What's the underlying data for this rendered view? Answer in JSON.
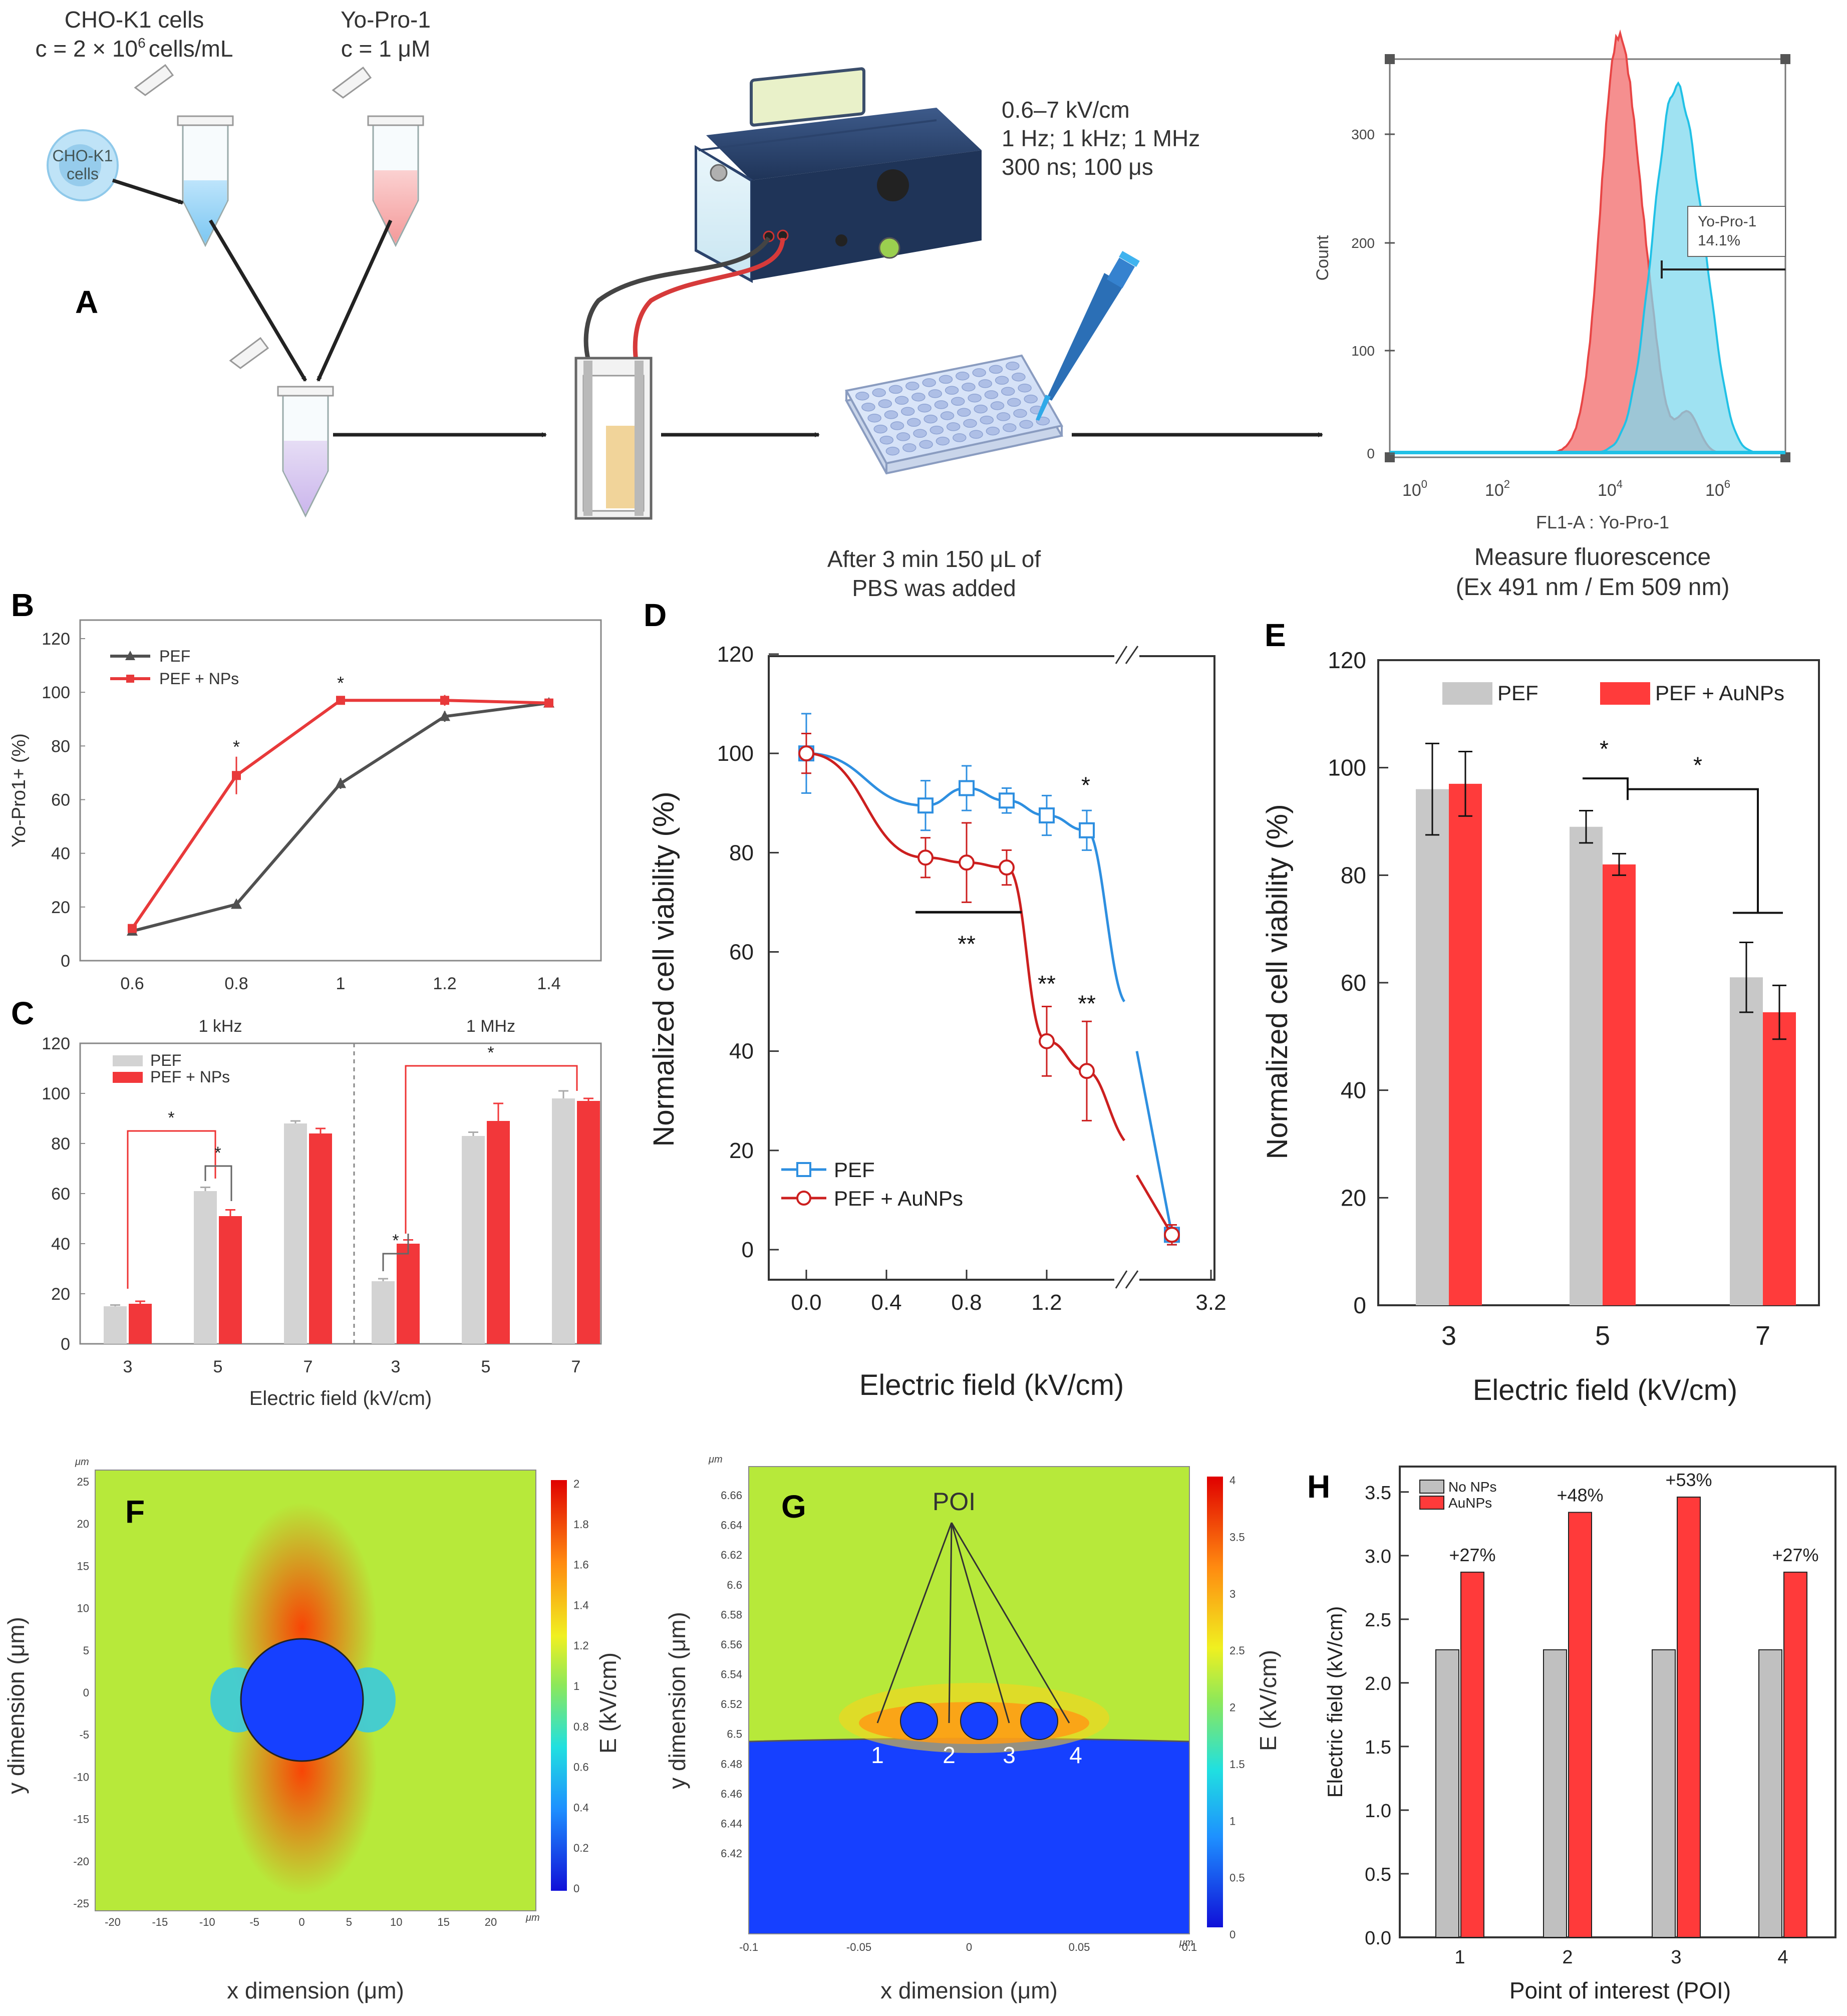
{
  "panel_letters": {
    "A": "A",
    "B": "B",
    "C": "C",
    "D": "D",
    "E": "E",
    "F": "F",
    "G": "G",
    "H": "H"
  },
  "panelA": {
    "cells_label_1": "CHO-K1 cells",
    "cells_label_2": "c = 2 × 10",
    "cells_label_sup": "6",
    "cells_label_3": "cells/mL",
    "dye_label_1": "Yo-Pro-1",
    "dye_label_2": "c = 1 μM",
    "circle_label_1": "CHO-K1",
    "circle_label_2": "cells",
    "pulse_params_1": "0.6–7 kV/cm",
    "pulse_params_2": "1 Hz; 1 kHz; 1 MHz",
    "pulse_params_3": "300 ns; 100 μs",
    "pbs_note_1": "After 3 min 150 μL of",
    "pbs_note_2": "PBS was added",
    "measure_1": "Measure fluorescence",
    "measure_2": "(Ex 491 nm / Em 509 nm)"
  },
  "chart_data": [
    {
      "id": "A-histogram",
      "type": "area",
      "xlabel": "FL1-A : Yo-Pro-1",
      "ylabel": "Count",
      "yticks": [
        "0",
        "100",
        "200",
        "300"
      ],
      "xticks": [
        "10",
        "10",
        "10",
        "10"
      ],
      "xtick_exponents": [
        "0",
        "2",
        "4",
        "6"
      ],
      "gate_label": "Yo-Pro-1",
      "gate_value": "14.1%",
      "colors": {
        "control": "#f26d6d",
        "treated": "#35c8e6"
      }
    },
    {
      "id": "B",
      "type": "line",
      "x": [
        0.6,
        0.8,
        1.0,
        1.2,
        1.4
      ],
      "xticks": [
        "0.6",
        "0.8",
        "1",
        "1.2",
        "1.4"
      ],
      "yticks": [
        "0",
        "20",
        "40",
        "60",
        "80",
        "100",
        "120"
      ],
      "ylim": [
        0,
        120
      ],
      "xlim": [
        0.5,
        1.5
      ],
      "ylabel": "Yo-Pro1+ (%)",
      "series": [
        {
          "name": "PEF",
          "values": [
            11,
            21,
            66,
            91,
            96
          ],
          "err": [
            1,
            1,
            2,
            2,
            1
          ],
          "color": "#505050"
        },
        {
          "name": "PEF + NPs",
          "values": [
            12,
            69,
            97,
            97,
            96
          ],
          "err": [
            1,
            7,
            1,
            2,
            1
          ],
          "color": "#e8393a"
        }
      ],
      "annotations": [
        "*",
        "*"
      ]
    },
    {
      "id": "C",
      "type": "bar",
      "groups": [
        "1 kHz",
        "1 MHz"
      ],
      "categories": [
        "3",
        "5",
        "7",
        "3",
        "5",
        "7"
      ],
      "xlabel": "Electric field (kV/cm)",
      "yticks": [
        "0",
        "20",
        "40",
        "60",
        "80",
        "100",
        "120"
      ],
      "ylim": [
        0,
        120
      ],
      "series": [
        {
          "name": "PEF",
          "values": [
            15,
            61,
            88,
            25,
            83,
            98
          ],
          "err": [
            0.5,
            1.5,
            1,
            1,
            1.5,
            3
          ],
          "color": "#d3d3d3"
        },
        {
          "name": "PEF + NPs",
          "values": [
            16,
            51,
            84,
            40,
            89,
            97
          ],
          "err": [
            1,
            2.5,
            2,
            1.5,
            7,
            1
          ],
          "color": "#f2373a"
        }
      ],
      "annotations": [
        "*",
        "*",
        "*",
        "*"
      ]
    },
    {
      "id": "D",
      "type": "line",
      "xticks": [
        "0.0",
        "0.4",
        "0.8",
        "1.2",
        "3.2"
      ],
      "yticks": [
        "0",
        "20",
        "40",
        "60",
        "80",
        "100",
        "120"
      ],
      "ylim": [
        0,
        120
      ],
      "xlabel": "Electric field (kV/cm)",
      "ylabel": "Normalized cell viability (%)",
      "series": [
        {
          "name": "PEF",
          "x": [
            0.0,
            0.6,
            0.8,
            1.0,
            1.2,
            1.4,
            3.0
          ],
          "values": [
            100,
            89.5,
            93,
            90.5,
            87.5,
            84.5,
            3
          ],
          "err": [
            8,
            5,
            4.5,
            2.5,
            4,
            4,
            2
          ],
          "color": "#2e8fe0"
        },
        {
          "name": "PEF + AuNPs",
          "x": [
            0.0,
            0.6,
            0.8,
            1.0,
            1.2,
            1.4,
            3.0
          ],
          "values": [
            100,
            79,
            78,
            77,
            42,
            36,
            3
          ],
          "err": [
            4,
            4,
            8,
            3.5,
            7,
            10,
            2
          ],
          "color": "#cc1f1f"
        }
      ],
      "annotations": [
        "*",
        "**",
        "**",
        "**"
      ]
    },
    {
      "id": "E",
      "type": "bar",
      "categories": [
        "3",
        "5",
        "7"
      ],
      "xlabel": "Electric field (kV/cm)",
      "ylabel": "Normalized cell viability (%)",
      "yticks": [
        "0",
        "20",
        "40",
        "60",
        "80",
        "100",
        "120"
      ],
      "ylim": [
        0,
        120
      ],
      "series": [
        {
          "name": "PEF",
          "values": [
            96,
            89,
            61
          ],
          "err": [
            8.5,
            3,
            6.5
          ],
          "color": "#c8c8c8"
        },
        {
          "name": "PEF + AuNPs",
          "values": [
            97,
            82,
            54.5
          ],
          "err": [
            6,
            2,
            5
          ],
          "color": "#ff3b3b"
        }
      ],
      "annotations": [
        "*",
        "*"
      ]
    },
    {
      "id": "F",
      "type": "heatmap",
      "xlabel": "x dimension (μm)",
      "ylabel": "y dimension (μm)",
      "colorbar_label": "E (kV/cm)",
      "axis_unit": "μm",
      "xticks": [
        "-20",
        "-15",
        "-10",
        "-5",
        "0",
        "5",
        "10",
        "15",
        "20"
      ],
      "yticks": [
        "25",
        "20",
        "15",
        "10",
        "5",
        "0",
        "-5",
        "-10",
        "-15",
        "-20",
        "-25"
      ],
      "colorbar_ticks": [
        "2",
        "1.8",
        "1.6",
        "1.4",
        "1.2",
        "1",
        "0.8",
        "0.6",
        "0.4",
        "0.2",
        "0"
      ]
    },
    {
      "id": "G",
      "type": "heatmap",
      "xlabel": "x dimension (μm)",
      "ylabel": "y dimension (μm)",
      "colorbar_label": "E (kV/cm)",
      "axis_unit": "μm",
      "xticks": [
        "-0.1",
        "-0.05",
        "0",
        "0.05",
        "0.1"
      ],
      "yticks": [
        "6.66",
        "6.64",
        "6.62",
        "6.6",
        "6.58",
        "6.56",
        "6.54",
        "6.52",
        "6.5",
        "6.48",
        "6.46",
        "6.44",
        "6.42"
      ],
      "colorbar_ticks": [
        "4",
        "3.5",
        "3",
        "2.5",
        "2",
        "1.5",
        "1",
        "0.5",
        "0"
      ],
      "poi_label": "POI",
      "poi_numbers": [
        "1",
        "2",
        "3",
        "4"
      ]
    },
    {
      "id": "H",
      "type": "bar",
      "categories": [
        "1",
        "2",
        "3",
        "4"
      ],
      "xlabel": "Point of interest (POI)",
      "ylabel": "Electric field (kV/cm)",
      "yticks": [
        "0.0",
        "0.5",
        "1.0",
        "1.5",
        "2.0",
        "2.5",
        "3.0",
        "3.5"
      ],
      "ylim": [
        0,
        3.7
      ],
      "series": [
        {
          "name": "No NPs",
          "values": [
            2.26,
            2.26,
            2.26,
            2.26
          ],
          "color": "#c0c0c0"
        },
        {
          "name": "AuNPs",
          "values": [
            2.87,
            3.34,
            3.46,
            2.87
          ],
          "color": "#ff3a3a"
        }
      ],
      "data_labels": [
        "+27%",
        "+48%",
        "+53%",
        "+27%"
      ]
    }
  ]
}
